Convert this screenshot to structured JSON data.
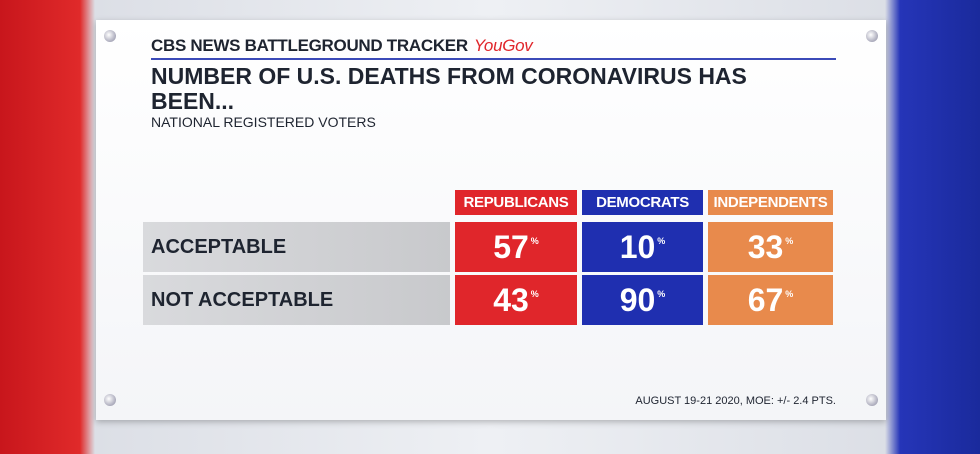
{
  "header": {
    "brand": "CBS NEWS BATTLEGROUND TRACKER",
    "partner": "YouGov"
  },
  "title": "NUMBER OF U.S. DEATHS FROM CORONAVIRUS HAS BEEN...",
  "subtitle": "NATIONAL REGISTERED VOTERS",
  "table": {
    "columns": [
      {
        "label": "REPUBLICANS",
        "color": "#e0262b"
      },
      {
        "label": "DEMOCRATS",
        "color": "#1f2fb0"
      },
      {
        "label": "INDEPENDENTS",
        "color": "#e88a4c"
      }
    ],
    "rows": [
      {
        "label": "ACCEPTABLE",
        "cells": [
          {
            "number": 57,
            "unit": "%"
          },
          {
            "number": 10,
            "unit": "%"
          },
          {
            "number": 33,
            "unit": "%"
          }
        ]
      },
      {
        "label": "NOT ACCEPTABLE",
        "cells": [
          {
            "number": 43,
            "unit": "%"
          },
          {
            "number": 90,
            "unit": "%"
          },
          {
            "number": 67,
            "unit": "%"
          }
        ]
      }
    ]
  },
  "footnote": "AUGUST 19-21 2020, MOE: +/- 2.4 PTS."
}
